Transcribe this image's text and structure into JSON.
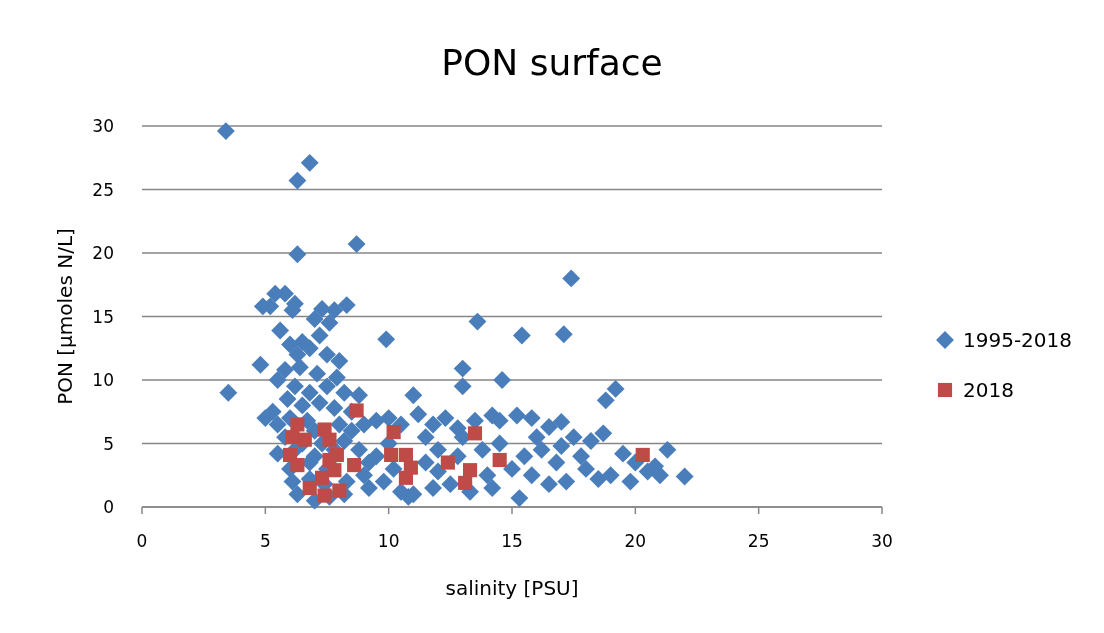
{
  "chart_data": {
    "type": "scatter",
    "title": "PON surface",
    "xlabel": "salinity [PSU]",
    "ylabel": "PON [µmoles N/L]",
    "xlim": [
      0,
      30
    ],
    "xticks": [
      0,
      5,
      10,
      15,
      20,
      25,
      30
    ],
    "ylim": [
      0,
      30
    ],
    "yticks": [
      0,
      5,
      10,
      15,
      20,
      25,
      30
    ],
    "grid": "y",
    "legend": "right",
    "series": [
      {
        "name": "1995-2018",
        "color": "#4a7ebb",
        "marker": "diamond",
        "x": [
          3.4,
          6.8,
          6.3,
          6.3,
          8.7,
          17.4,
          13.6,
          15.4,
          17.1,
          9.9,
          3.5,
          13.0,
          13.0,
          14.6,
          19.2,
          18.8,
          21.3,
          22.0,
          15.3,
          5.4,
          5.2,
          4.9,
          5.8,
          6.2,
          6.1,
          5.6,
          7.3,
          7.0,
          7.8,
          8.3,
          7.6,
          6.0,
          6.5,
          7.2,
          6.3,
          6.8,
          7.5,
          8.0,
          4.8,
          5.8,
          6.4,
          7.1,
          7.9,
          5.5,
          6.2,
          6.8,
          7.5,
          8.2,
          8.8,
          5.9,
          6.5,
          7.2,
          7.8,
          8.5,
          5.3,
          5.0,
          5.5,
          6.0,
          6.7,
          7.0,
          8.0,
          8.5,
          9.0,
          5.8,
          6.5,
          7.3,
          8.2,
          5.5,
          6.2,
          7.0,
          7.8,
          8.8,
          6.0,
          6.8,
          7.5,
          6.1,
          6.8,
          7.4,
          8.3,
          9.0,
          6.3,
          7.0,
          7.6,
          8.2,
          9.2,
          9.5,
          10.0,
          10.5,
          11.0,
          11.2,
          11.8,
          12.3,
          12.8,
          13.5,
          14.2,
          14.5,
          15.2,
          15.8,
          16.5,
          17.0,
          17.5,
          18.2,
          18.7,
          19.5,
          20.0,
          20.5,
          21.0,
          19.0,
          18.0,
          17.2,
          16.5,
          15.8,
          15.0,
          14.2,
          13.3,
          12.5,
          11.8,
          11.0,
          10.5,
          10.8,
          9.8,
          10.2,
          11.5,
          12.0,
          12.8,
          13.8,
          14.5,
          15.5,
          16.2,
          16.8,
          17.8,
          18.5,
          19.8,
          11.5,
          13.0,
          10.0,
          9.5,
          9.2,
          14.0,
          12.0,
          16.0,
          17.0,
          20.8
        ],
        "values": [
          29.6,
          27.1,
          25.7,
          19.9,
          20.7,
          18.0,
          14.6,
          13.5,
          13.6,
          13.2,
          9.0,
          10.9,
          9.5,
          10.0,
          9.3,
          8.4,
          4.5,
          2.4,
          0.7,
          16.8,
          15.8,
          15.8,
          16.8,
          16.0,
          15.5,
          13.9,
          15.6,
          14.8,
          15.5,
          15.9,
          14.5,
          12.8,
          13.0,
          13.5,
          12.0,
          12.5,
          12.0,
          11.5,
          11.2,
          10.8,
          11.0,
          10.5,
          10.2,
          10.0,
          9.5,
          9.0,
          9.5,
          9.0,
          8.8,
          8.5,
          8.0,
          8.2,
          7.8,
          7.5,
          7.5,
          7.0,
          6.5,
          7.0,
          6.8,
          6.0,
          6.5,
          6.0,
          6.5,
          5.5,
          5.0,
          5.0,
          5.2,
          4.2,
          4.5,
          4.0,
          4.5,
          4.5,
          3.0,
          3.5,
          3.0,
          2.0,
          2.2,
          1.8,
          2.0,
          2.5,
          1.0,
          0.5,
          0.8,
          1.0,
          1.5,
          6.8,
          7.0,
          6.5,
          8.8,
          7.3,
          6.5,
          7.0,
          6.2,
          6.8,
          7.2,
          6.8,
          7.2,
          7.0,
          6.3,
          6.7,
          5.5,
          5.2,
          5.8,
          4.2,
          3.5,
          2.8,
          2.5,
          2.5,
          3.0,
          2.0,
          1.8,
          2.5,
          3.0,
          1.5,
          1.2,
          1.8,
          1.5,
          1.0,
          1.2,
          0.8,
          2.0,
          3.0,
          3.5,
          4.5,
          4.0,
          4.5,
          5.0,
          4.0,
          4.5,
          3.5,
          4.0,
          2.2,
          2.0,
          5.5,
          5.5,
          5.0,
          4.0,
          3.5,
          2.5,
          2.8,
          5.5,
          4.8,
          3.2
        ]
      },
      {
        "name": "2018",
        "color": "#be4b48",
        "marker": "square",
        "x": [
          8.7,
          10.2,
          13.5,
          6.3,
          7.4,
          6.1,
          6.6,
          6.0,
          6.3,
          7.6,
          7.9,
          7.8,
          8.6,
          6.8,
          7.4,
          8.0,
          10.1,
          10.7,
          10.9,
          10.7,
          12.4,
          13.3,
          13.1,
          14.5,
          20.3,
          7.3,
          7.6
        ],
        "values": [
          7.6,
          5.9,
          5.8,
          6.5,
          6.1,
          5.5,
          5.3,
          4.1,
          3.3,
          5.3,
          4.1,
          2.9,
          3.3,
          1.5,
          0.9,
          1.3,
          4.1,
          4.1,
          3.1,
          2.3,
          3.5,
          2.9,
          1.9,
          3.7,
          4.1,
          2.3,
          3.7
        ]
      }
    ]
  }
}
